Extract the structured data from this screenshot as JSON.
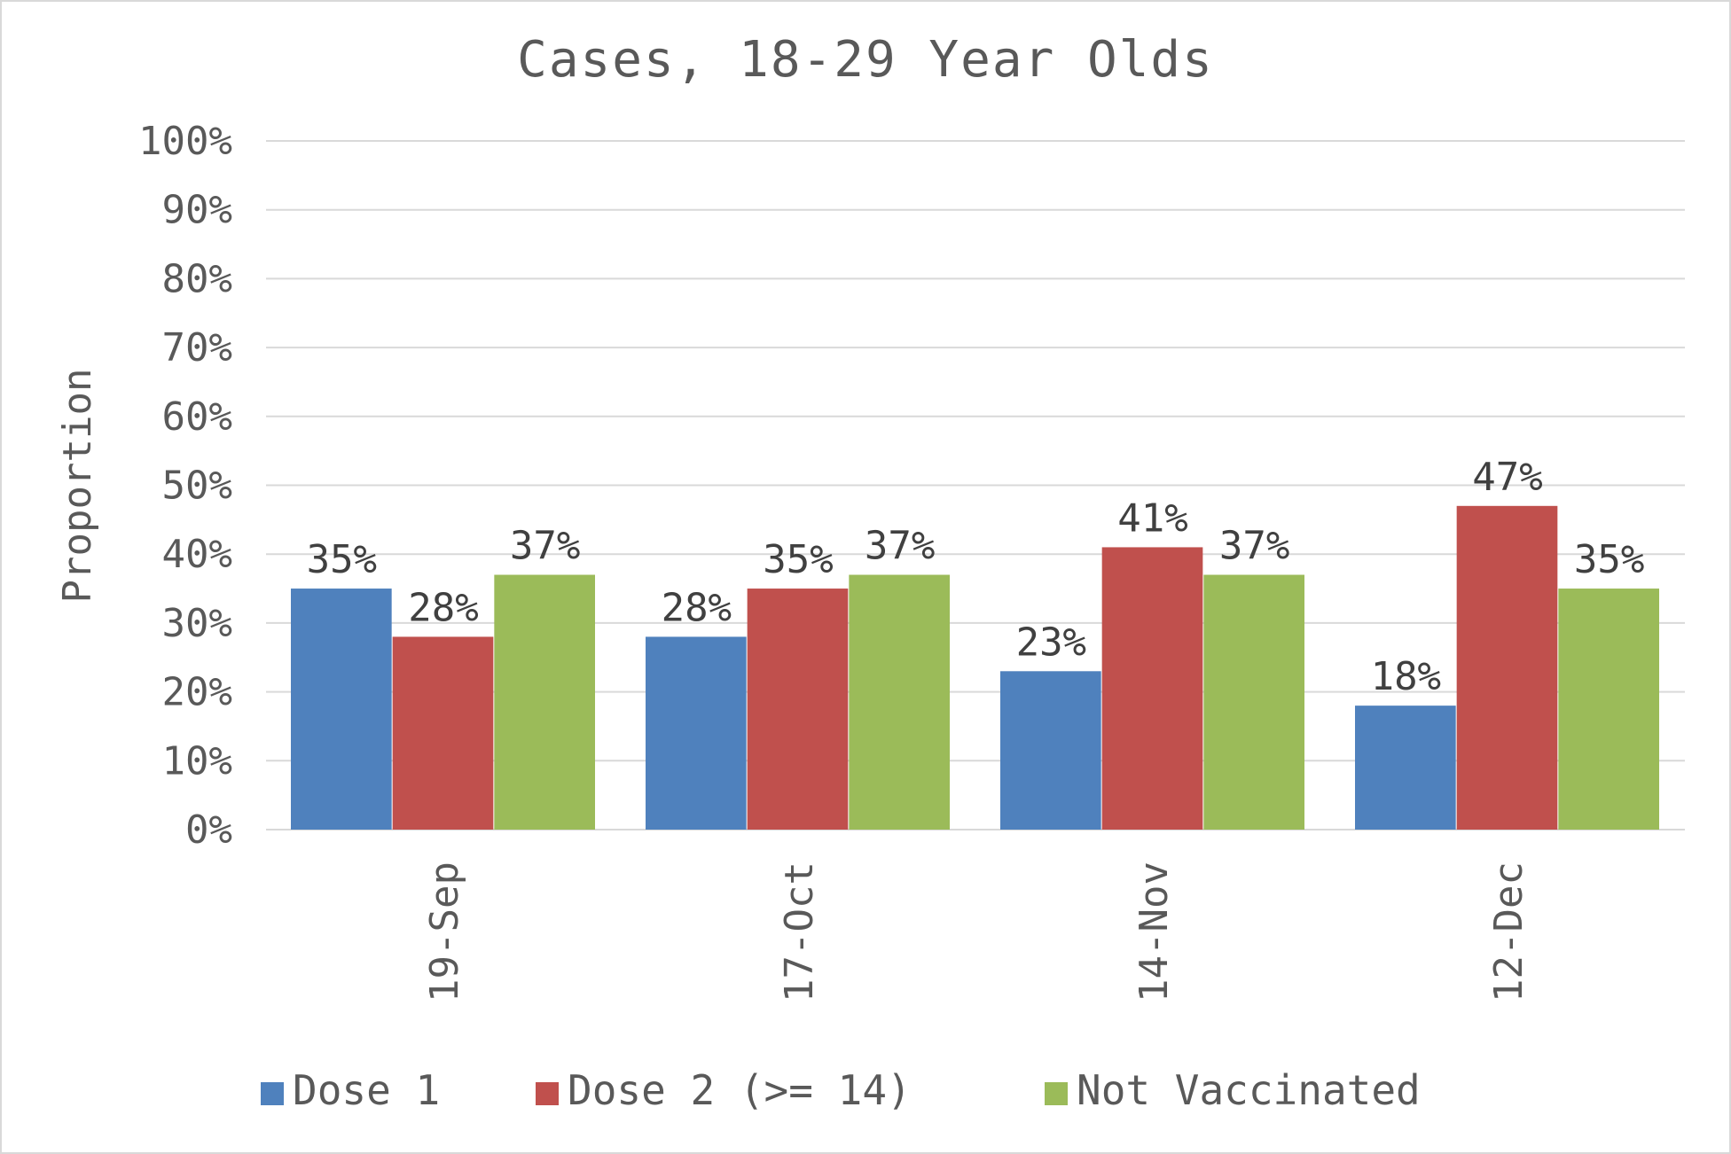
{
  "chart_data": {
    "type": "bar",
    "title": "Cases, 18-29 Year Olds",
    "xlabel": "",
    "ylabel": "Proportion",
    "ylim": [
      0,
      100
    ],
    "yticks": [
      "0%",
      "10%",
      "20%",
      "30%",
      "40%",
      "50%",
      "60%",
      "70%",
      "80%",
      "90%",
      "100%"
    ],
    "categories": [
      "19-Sep",
      "17-Oct",
      "14-Nov",
      "12-Dec"
    ],
    "series": [
      {
        "name": "Dose 1",
        "color": "#4f81bd",
        "values": [
          35,
          28,
          23,
          18
        ],
        "labels": [
          "35%",
          "28%",
          "23%",
          "18%"
        ]
      },
      {
        "name": "Dose 2 (>= 14)",
        "color": "#c0504d",
        "values": [
          28,
          35,
          41,
          47
        ],
        "labels": [
          "28%",
          "35%",
          "41%",
          "47%"
        ]
      },
      {
        "name": "Not Vaccinated",
        "color": "#9bbb59",
        "values": [
          37,
          37,
          37,
          35
        ],
        "labels": [
          "37%",
          "37%",
          "37%",
          "35%"
        ]
      }
    ],
    "grid": true,
    "legend_position": "bottom"
  }
}
